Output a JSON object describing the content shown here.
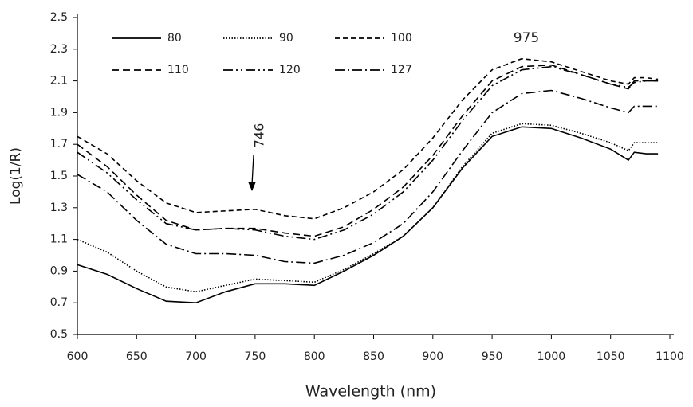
{
  "chart_data": {
    "type": "line",
    "x_label": "Wavelength (nm)",
    "y_label": "Log(1/R)",
    "x": [
      600,
      625,
      650,
      675,
      700,
      725,
      750,
      775,
      800,
      825,
      850,
      875,
      900,
      925,
      950,
      975,
      1000,
      1025,
      1050,
      1065,
      1070,
      1080,
      1090
    ],
    "series": [
      {
        "name": "80",
        "color": "#000000",
        "dash": "none",
        "values": [
          0.94,
          0.88,
          0.79,
          0.71,
          0.7,
          0.77,
          0.82,
          0.82,
          0.81,
          0.9,
          1.0,
          1.12,
          1.3,
          1.55,
          1.75,
          1.81,
          1.8,
          1.74,
          1.67,
          1.6,
          1.65,
          1.64,
          1.64
        ]
      },
      {
        "name": "90",
        "color": "#000000",
        "dash": "1.5 2",
        "values": [
          1.1,
          1.02,
          0.9,
          0.8,
          0.77,
          0.81,
          0.85,
          0.84,
          0.83,
          0.91,
          1.01,
          1.12,
          1.3,
          1.56,
          1.77,
          1.83,
          1.82,
          1.77,
          1.71,
          1.66,
          1.71,
          1.71,
          1.71
        ]
      },
      {
        "name": "100",
        "color": "#000000",
        "dash": "6 4",
        "values": [
          1.75,
          1.64,
          1.47,
          1.33,
          1.27,
          1.28,
          1.29,
          1.25,
          1.23,
          1.3,
          1.4,
          1.54,
          1.74,
          1.98,
          2.17,
          2.24,
          2.22,
          2.16,
          2.1,
          2.08,
          2.12,
          2.12,
          2.11
        ]
      },
      {
        "name": "110",
        "color": "#000000",
        "dash": "9 5",
        "values": [
          1.7,
          1.56,
          1.38,
          1.22,
          1.16,
          1.17,
          1.17,
          1.14,
          1.12,
          1.18,
          1.29,
          1.43,
          1.63,
          1.88,
          2.1,
          2.19,
          2.2,
          2.14,
          2.08,
          2.05,
          2.1,
          2.1,
          2.1
        ]
      },
      {
        "name": "120",
        "color": "#000000",
        "dash": "12 4 2 4 2 4",
        "values": [
          1.65,
          1.52,
          1.35,
          1.2,
          1.16,
          1.17,
          1.16,
          1.12,
          1.1,
          1.16,
          1.26,
          1.4,
          1.6,
          1.85,
          2.07,
          2.17,
          2.19,
          2.14,
          2.08,
          2.06,
          2.09,
          2.1,
          2.1
        ]
      },
      {
        "name": "127",
        "color": "#000000",
        "dash": "12 4 2 4",
        "values": [
          1.51,
          1.4,
          1.22,
          1.07,
          1.01,
          1.01,
          1.0,
          0.96,
          0.95,
          1.0,
          1.08,
          1.2,
          1.4,
          1.66,
          1.9,
          2.02,
          2.04,
          1.99,
          1.93,
          1.9,
          1.94,
          1.94,
          1.94
        ]
      }
    ],
    "xlim": [
      600,
      1100
    ],
    "xticks": [
      600,
      650,
      700,
      750,
      800,
      850,
      900,
      950,
      1000,
      1050,
      1100
    ],
    "ylim": [
      0.5,
      2.5
    ],
    "yticks": [
      0.5,
      0.7,
      0.9,
      1.1,
      1.3,
      1.5,
      1.7,
      1.9,
      2.1,
      2.3,
      2.5
    ],
    "annotations": [
      "975",
      "746"
    ]
  }
}
